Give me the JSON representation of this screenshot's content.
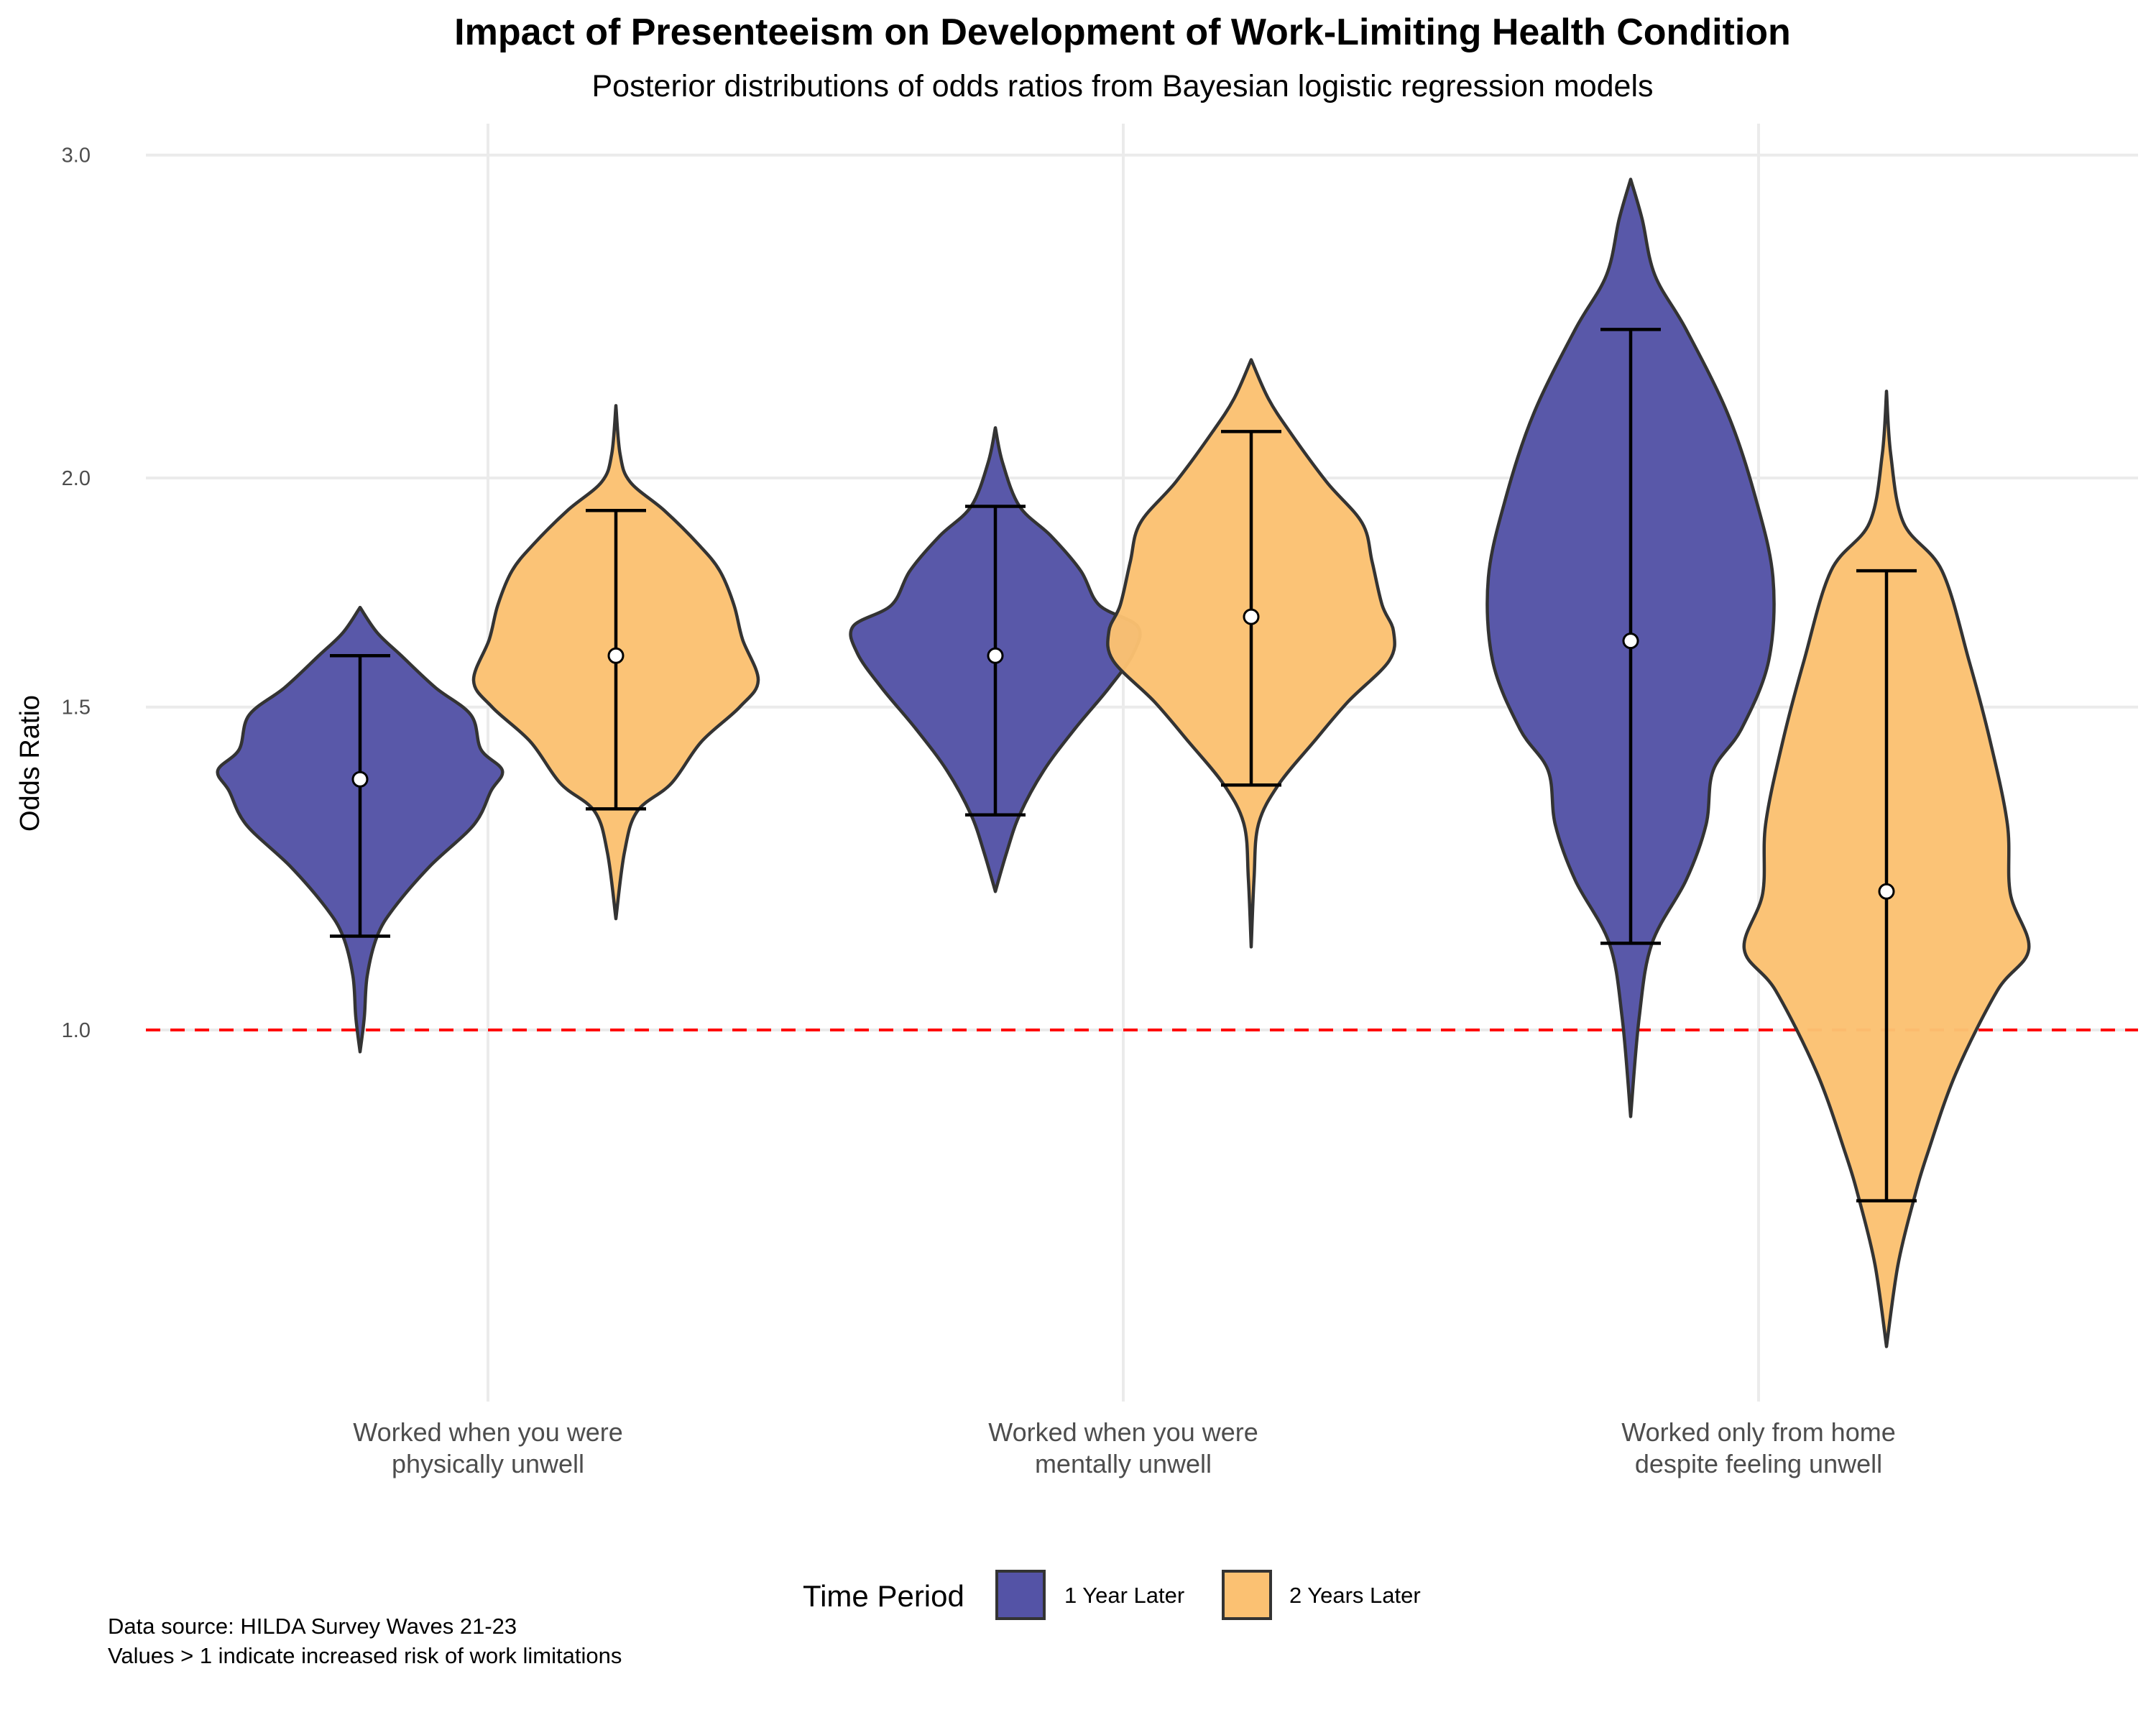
{
  "chart_data": {
    "type": "violin",
    "title": "Impact of Presenteeism on Development of Work-Limiting Health Condition",
    "subtitle": "Posterior distributions of odds ratios from Bayesian logistic regression models",
    "xlabel": "",
    "ylabel": "Odds Ratio",
    "y_scale": "log",
    "ylim": [
      0.62,
      3.25
    ],
    "y_ticks": [
      {
        "value": 1.0,
        "label": "1.0"
      },
      {
        "value": 1.5,
        "label": "1.5"
      },
      {
        "value": 2.0,
        "label": "2.0"
      },
      {
        "value": 3.0,
        "label": "3.0"
      }
    ],
    "grid": true,
    "reference_line": {
      "value": 1.0,
      "style": "dashed",
      "color": "#ff0000"
    },
    "categories": [
      {
        "lines": [
          "Worked when you were",
          "physically unwell"
        ]
      },
      {
        "lines": [
          "Worked when you were",
          "mentally unwell"
        ]
      },
      {
        "lines": [
          "Worked only from home",
          "despite feeling unwell"
        ]
      }
    ],
    "legend": {
      "title": "Time Period",
      "position": "bottom",
      "entries": [
        "1 Year Later",
        "2 Years Later"
      ]
    },
    "series": [
      {
        "name": "1 Year Later",
        "color": "#5453a6",
        "outline": "#333333",
        "violins": [
          {
            "median": 1.37,
            "interval": [
              1.125,
              1.6
            ],
            "range": [
              0.973,
              1.7
            ],
            "density": [
              [
                1.7,
                0
              ],
              [
                1.647,
                0.12
              ],
              [
                1.6,
                0.29
              ],
              [
                1.537,
                0.53
              ],
              [
                1.485,
                0.78
              ],
              [
                1.422,
                0.85
              ],
              [
                1.385,
                1.0
              ],
              [
                1.35,
                0.92
              ],
              [
                1.294,
                0.8
              ],
              [
                1.228,
                0.49
              ],
              [
                1.166,
                0.24
              ],
              [
                1.125,
                0.12
              ],
              [
                1.07,
                0.05
              ],
              [
                1.016,
                0.03
              ],
              [
                0.973,
                0
              ]
            ]
          },
          {
            "median": 1.6,
            "interval": [
              1.31,
              1.93
            ],
            "range": [
              1.19,
              2.13
            ],
            "density": [
              [
                2.13,
                0
              ],
              [
                2.04,
                0.05
              ],
              [
                1.93,
                0.17
              ],
              [
                1.86,
                0.39
              ],
              [
                1.78,
                0.6
              ],
              [
                1.705,
                0.73
              ],
              [
                1.66,
                1.0
              ],
              [
                1.605,
                0.97
              ],
              [
                1.537,
                0.8
              ],
              [
                1.46,
                0.56
              ],
              [
                1.385,
                0.34
              ],
              [
                1.31,
                0.17
              ],
              [
                1.25,
                0.08
              ],
              [
                1.19,
                0
              ]
            ]
          },
          {
            "median": 1.63,
            "interval": [
              1.115,
              2.41
            ],
            "range": [
              0.897,
              2.91
            ],
            "density": [
              [
                2.91,
                0
              ],
              [
                2.77,
                0.08
              ],
              [
                2.58,
                0.17
              ],
              [
                2.41,
                0.39
              ],
              [
                2.17,
                0.68
              ],
              [
                1.96,
                0.87
              ],
              [
                1.765,
                1.0
              ],
              [
                1.59,
                0.97
              ],
              [
                1.46,
                0.78
              ],
              [
                1.385,
                0.58
              ],
              [
                1.294,
                0.53
              ],
              [
                1.207,
                0.39
              ],
              [
                1.115,
                0.15
              ],
              [
                1.016,
                0.06
              ],
              [
                0.897,
                0
              ]
            ]
          }
        ]
      },
      {
        "name": "2 Years Later",
        "color": "#fbc172",
        "outline": "#333333",
        "violins": [
          {
            "median": 1.6,
            "interval": [
              1.32,
              1.92
            ],
            "range": [
              1.15,
              2.19
            ],
            "density": [
              [
                2.19,
                0
              ],
              [
                2.06,
                0.03
              ],
              [
                1.99,
                0.1
              ],
              [
                1.92,
                0.34
              ],
              [
                1.84,
                0.58
              ],
              [
                1.78,
                0.73
              ],
              [
                1.705,
                0.83
              ],
              [
                1.633,
                0.89
              ],
              [
                1.551,
                1.0
              ],
              [
                1.5,
                0.87
              ],
              [
                1.436,
                0.6
              ],
              [
                1.363,
                0.39
              ],
              [
                1.316,
                0.15
              ],
              [
                1.25,
                0.06
              ],
              [
                1.15,
                0
              ]
            ]
          },
          {
            "median": 1.68,
            "interval": [
              1.36,
              2.12
            ],
            "range": [
              1.11,
              2.32
            ],
            "density": [
              [
                2.32,
                0
              ],
              [
                2.21,
                0.12
              ],
              [
                2.12,
                0.27
              ],
              [
                1.99,
                0.53
              ],
              [
                1.89,
                0.78
              ],
              [
                1.8,
                0.85
              ],
              [
                1.705,
                0.92
              ],
              [
                1.65,
                1.0
              ],
              [
                1.59,
                0.97
              ],
              [
                1.51,
                0.68
              ],
              [
                1.436,
                0.44
              ],
              [
                1.36,
                0.19
              ],
              [
                1.294,
                0.05
              ],
              [
                1.21,
                0.02
              ],
              [
                1.11,
                0
              ]
            ]
          },
          {
            "median": 1.19,
            "interval": [
              0.807,
              1.78
            ],
            "range": [
              0.672,
              2.23
            ],
            "density": [
              [
                2.23,
                0
              ],
              [
                2.06,
                0.03
              ],
              [
                1.89,
                0.12
              ],
              [
                1.78,
                0.39
              ],
              [
                1.59,
                0.58
              ],
              [
                1.436,
                0.73
              ],
              [
                1.294,
                0.85
              ],
              [
                1.187,
                0.87
              ],
              [
                1.107,
                1.0
              ],
              [
                1.051,
                0.78
              ],
              [
                0.948,
                0.49
              ],
              [
                0.857,
                0.29
              ],
              [
                0.807,
                0.19
              ],
              [
                0.744,
                0.08
              ],
              [
                0.672,
                0
              ]
            ]
          }
        ]
      }
    ],
    "caption": [
      "Data source: HILDA Survey Waves 21-23",
      "Values > 1 indicate increased risk of work limitations"
    ]
  }
}
